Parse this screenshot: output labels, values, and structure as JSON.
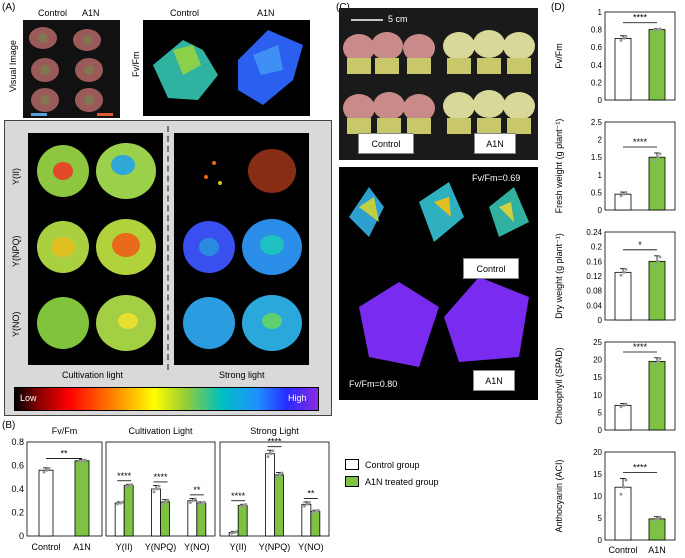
{
  "panelA": {
    "letter": "(A)",
    "control": "Control",
    "a1n": "A1N",
    "control2": "Control",
    "a1n2": "A1N",
    "visual_label": "Visual Image",
    "fvfm_label": "Fv/Fm",
    "rows": [
      "Y(II)",
      "Y(NPQ)",
      "Y(NO)"
    ],
    "cultivation_light": "Cultivation light",
    "strong_light": "Strong light",
    "colorbar_low": "Low",
    "colorbar_high": "High"
  },
  "panelB": {
    "letter": "(B)",
    "legend": [
      "Control group",
      "A1N treated group"
    ],
    "colors": {
      "control": "#ffffff",
      "a1n": "#7dc242",
      "dot": "#999999"
    }
  },
  "panelC": {
    "letter": "(C)",
    "scale": "5 cm",
    "control": "Control",
    "a1n": "A1N",
    "control_box": "Control",
    "a1n_box": "A1N",
    "fvfm_control": "Fv/Fm=0.69",
    "fvfm_a1n": "Fv/Fm=0.80"
  },
  "panelD": {
    "letter": "(D)"
  },
  "chart_data": [
    {
      "id": "B1",
      "type": "bar",
      "title": "Fv/Fm",
      "categories": [
        "Control",
        "A1N"
      ],
      "values": [
        0.56,
        0.64
      ],
      "errors": [
        0.02,
        0.01
      ],
      "ylim": [
        0,
        0.8
      ],
      "yticks": [
        "0",
        "0.2",
        "0.4",
        "0.6",
        "0.8"
      ],
      "significance": [
        {
          "from": 0,
          "to": 1,
          "label": "**"
        }
      ]
    },
    {
      "id": "B2",
      "type": "bar",
      "title": "Cultivation Light",
      "categories": [
        "Y(II)",
        "Y(NPQ)",
        "Y(NO)"
      ],
      "series": [
        {
          "values": [
            0.28,
            0.4,
            0.3
          ],
          "errors": [
            0.01,
            0.03,
            0.02
          ]
        },
        {
          "values": [
            0.43,
            0.29,
            0.28
          ],
          "errors": [
            0.01,
            0.02,
            0.01
          ]
        }
      ],
      "ylim": [
        0,
        0.8
      ],
      "significance": [
        {
          "cat": 0,
          "label": "****"
        },
        {
          "cat": 1,
          "label": "****"
        },
        {
          "cat": 2,
          "label": "**"
        }
      ]
    },
    {
      "id": "B3",
      "type": "bar",
      "title": "Strong Light",
      "categories": [
        "Y(II)",
        "Y(NPQ)",
        "Y(NO)"
      ],
      "series": [
        {
          "values": [
            0.03,
            0.7,
            0.27
          ],
          "errors": [
            0.01,
            0.03,
            0.02
          ]
        },
        {
          "values": [
            0.26,
            0.52,
            0.21
          ],
          "errors": [
            0.01,
            0.02,
            0.01
          ]
        }
      ],
      "ylim": [
        0,
        0.8
      ],
      "significance": [
        {
          "cat": 0,
          "label": "****"
        },
        {
          "cat": 1,
          "label": "****"
        },
        {
          "cat": 2,
          "label": "**"
        }
      ]
    },
    {
      "id": "D1",
      "type": "bar",
      "ylabel": "Fv/Fm",
      "categories": [
        "Control",
        "A1N"
      ],
      "values": [
        0.7,
        0.8
      ],
      "errors": [
        0.03,
        0.01
      ],
      "ylim": [
        0,
        1.0
      ],
      "yticks": [
        "0",
        "0.2",
        "0.4",
        "0.6",
        "0.8",
        "1"
      ],
      "significance": [
        {
          "from": 0,
          "to": 1,
          "label": "****"
        }
      ]
    },
    {
      "id": "D2",
      "type": "bar",
      "ylabel": "Fresh weight (g plant⁻¹)",
      "categories": [
        "Control",
        "A1N"
      ],
      "values": [
        0.45,
        1.5
      ],
      "errors": [
        0.06,
        0.12
      ],
      "ylim": [
        0,
        2.5
      ],
      "yticks": [
        "0",
        "0.5",
        "1",
        "1.5",
        "2",
        "2.5"
      ],
      "significance": [
        {
          "from": 0,
          "to": 1,
          "label": "****"
        }
      ]
    },
    {
      "id": "D3",
      "type": "bar",
      "ylabel": "Dry weight (g plant⁻¹)",
      "categories": [
        "Control",
        "A1N"
      ],
      "values": [
        0.13,
        0.16
      ],
      "errors": [
        0.01,
        0.015
      ],
      "ylim": [
        0,
        0.24
      ],
      "yticks": [
        "0",
        "0.04",
        "0.08",
        "0.12",
        "0.16",
        "0.2",
        "0.24"
      ],
      "significance": [
        {
          "from": 0,
          "to": 1,
          "label": "*"
        }
      ]
    },
    {
      "id": "D4",
      "type": "bar",
      "ylabel": "Chlorophyll (SPAD)",
      "categories": [
        "Control",
        "A1N"
      ],
      "values": [
        7,
        19.5
      ],
      "errors": [
        0.5,
        1.0
      ],
      "ylim": [
        0,
        25
      ],
      "yticks": [
        "0",
        "5",
        "10",
        "15",
        "20",
        "25"
      ],
      "significance": [
        {
          "from": 0,
          "to": 1,
          "label": "****"
        }
      ]
    },
    {
      "id": "D5",
      "type": "bar",
      "ylabel": "Anthocyanin (ACI)",
      "categories": [
        "Control",
        "A1N"
      ],
      "values": [
        12,
        4.8
      ],
      "errors": [
        2.0,
        0.5
      ],
      "ylim": [
        0,
        20
      ],
      "yticks": [
        "0",
        "5",
        "10",
        "15",
        "20"
      ],
      "significance": [
        {
          "from": 0,
          "to": 1,
          "label": "****"
        }
      ]
    }
  ]
}
